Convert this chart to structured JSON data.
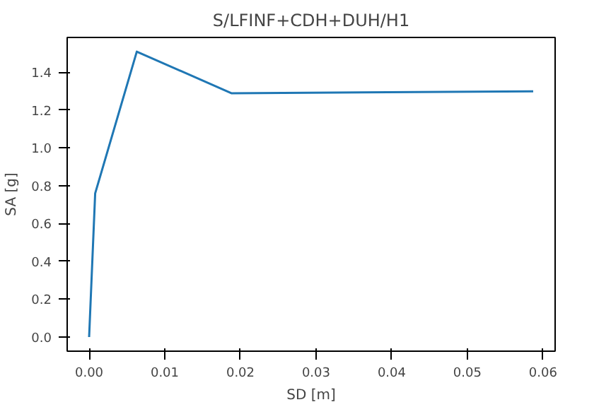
{
  "chart_data": {
    "type": "line",
    "title": "S/LFINF+CDH+DUH/H1",
    "xlabel": "SD [m]",
    "ylabel": "SA [g]",
    "x": [
      0,
      0.0008,
      0.0063,
      0.0188,
      0.0587
    ],
    "series": [
      {
        "color": "#1f77b4",
        "values": [
          0,
          0.76,
          1.51,
          1.29,
          1.3
        ]
      }
    ],
    "xlim": [
      -0.0029,
      0.0616
    ],
    "ylim": [
      -0.075,
      1.585
    ],
    "xticks": [
      {
        "value": 0,
        "label": "0.00"
      },
      {
        "value": 0.01,
        "label": "0.01"
      },
      {
        "value": 0.02,
        "label": "0.02"
      },
      {
        "value": 0.03,
        "label": "0.03"
      },
      {
        "value": 0.04,
        "label": "0.04"
      },
      {
        "value": 0.05,
        "label": "0.05"
      },
      {
        "value": 0.06,
        "label": "0.06"
      }
    ],
    "yticks": [
      {
        "value": 0,
        "label": "0.0"
      },
      {
        "value": 0.2,
        "label": "0.2"
      },
      {
        "value": 0.4,
        "label": "0.4"
      },
      {
        "value": 0.6,
        "label": "0.6"
      },
      {
        "value": 0.8,
        "label": "0.8"
      },
      {
        "value": 1.0,
        "label": "1.0"
      },
      {
        "value": 1.2,
        "label": "1.2"
      },
      {
        "value": 1.4,
        "label": "1.4"
      }
    ],
    "grid": false
  }
}
